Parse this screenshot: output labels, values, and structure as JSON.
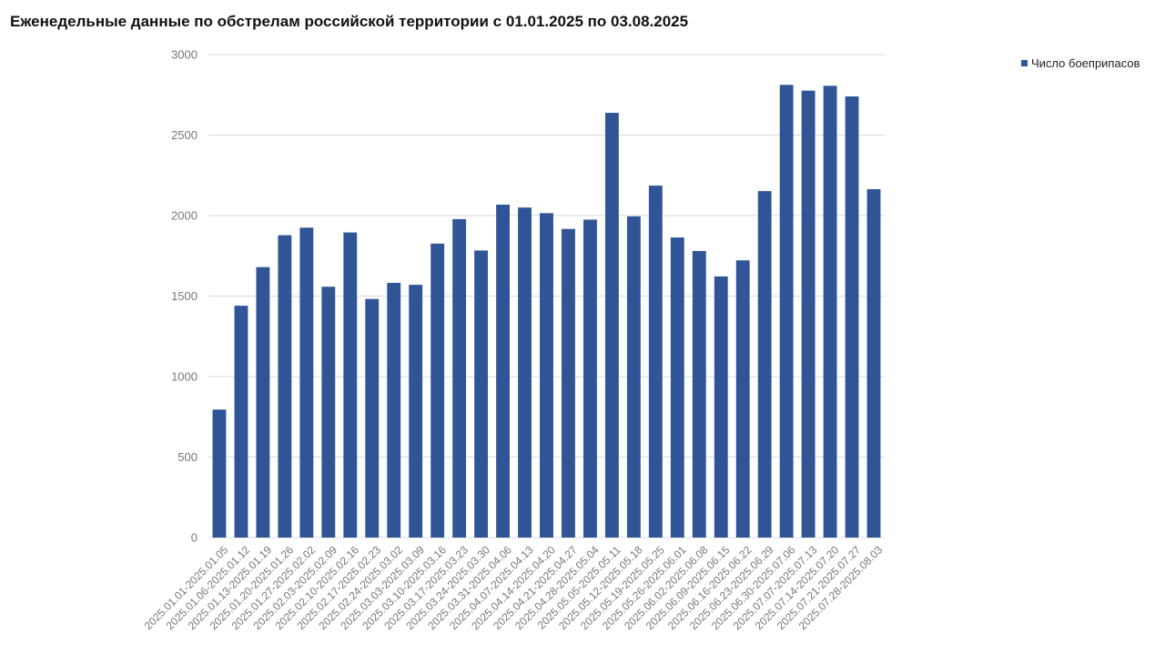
{
  "chart_data": {
    "type": "bar",
    "title": "Еженедельные данные по обстрелам российской территории с 01.01.2025 по 03.08.2025",
    "xlabel": "",
    "ylabel": "",
    "ylim": [
      0,
      3000
    ],
    "yticks": [
      0,
      500,
      1000,
      1500,
      2000,
      2500,
      3000
    ],
    "grid": true,
    "legend_position": "top-right",
    "categories": [
      "2025.01.01-2025.01.05",
      "2025.01.06-2025.01.12",
      "2025.01.13-2025.01.19",
      "2025.01.20-2025.01.26",
      "2025.01.27-2025.02.02",
      "2025.02.03-2025.02.09",
      "2025.02.10-2025.02.16",
      "2025.02.17-2025.02.23",
      "2025.02.24-2025.03.02",
      "2025.03.03-2025.03.09",
      "2025.03.10-2025.03.16",
      "2025.03.17-2025.03.23",
      "2025.03.24-2025.03.30",
      "2025.03.31-2025.04.06",
      "2025.04.07-2025.04.13",
      "2025.04.14-2025.04.20",
      "2025.04.21-2025.04.27",
      "2025.04.28-2025.05.04",
      "2025.05.05-2025.05.11",
      "2025.05.12-2025.05.18",
      "2025.05.19-2025.05.25",
      "2025.05.26-2025.06.01",
      "2025.06.02-2025.06.08",
      "2025.06.09-2025.06.15",
      "2025.06.16-2025.06.22",
      "2025.06.23-2025.06.29",
      "2025.06.30-2025.07.06",
      "2025.07.07-2025.07.13",
      "2025.07.14-2025.07.20",
      "2025.07.21-2025.07.27",
      "2025.07.28-2025.08.03"
    ],
    "series": [
      {
        "name": "Число боеприпасов",
        "color": "#2f5597",
        "values": [
          795,
          1440,
          1680,
          1878,
          1925,
          1558,
          1895,
          1482,
          1582,
          1570,
          1826,
          1978,
          1783,
          2068,
          2050,
          2015,
          1917,
          1975,
          2638,
          1995,
          2186,
          1864,
          1780,
          1622,
          1722,
          2152,
          2812,
          2776,
          2806,
          2740,
          2164
        ]
      }
    ]
  },
  "colors": {
    "bar": "#2f5597",
    "grid": "#d9d9d9",
    "axis_text": "#777777"
  }
}
